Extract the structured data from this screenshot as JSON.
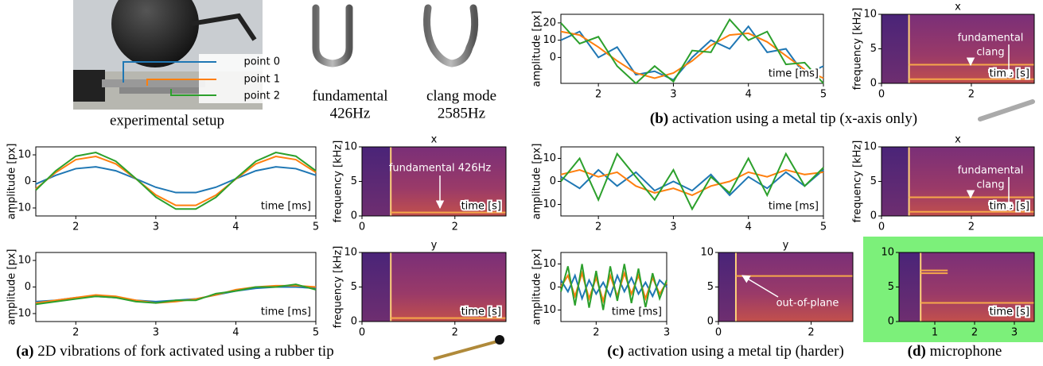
{
  "setup": {
    "caption": "experimental setup",
    "points": [
      "point 0",
      "point 1",
      "point 2"
    ]
  },
  "forks": [
    {
      "name": "fundamental",
      "freq": "426Hz"
    },
    {
      "name": "clang mode",
      "freq": "2585Hz"
    }
  ],
  "captions": [
    {
      "label": "(a)",
      "text": "2D vibrations of fork activated using a rubber tip"
    },
    {
      "label": "(b)",
      "text": "activation using a metal tip (x-axis only)"
    },
    {
      "label": "(c)",
      "text": "activation using a metal tip (harder)"
    },
    {
      "label": "(d)",
      "text": "microphone"
    }
  ],
  "chart_data": [
    {
      "type": "line",
      "xlabel": "time [ms]",
      "ylabel": "amplitude [px]",
      "xlim": [
        1.5,
        5
      ],
      "ylim": [
        -15,
        25
      ],
      "xticks": [
        2,
        3,
        4,
        5
      ],
      "yticks": [
        0,
        10,
        20
      ],
      "x": [
        1.5,
        1.75,
        2,
        2.25,
        2.5,
        2.75,
        3,
        3.25,
        3.5,
        3.75,
        4,
        4.25,
        4.5,
        4.75,
        5
      ],
      "series": [
        {
          "color": "#1f77b4",
          "values": [
            10,
            15,
            0,
            6,
            -10,
            -8,
            -13,
            0,
            10,
            5,
            18,
            3,
            5,
            -10,
            -5
          ]
        },
        {
          "color": "#ff7f0e",
          "values": [
            15,
            13,
            6,
            -2,
            -9,
            -12,
            -9,
            -2,
            7,
            13,
            14,
            9,
            1,
            -7,
            -12
          ]
        },
        {
          "color": "#2ca02c",
          "values": [
            20,
            8,
            12,
            -5,
            -15,
            -5,
            -14,
            4,
            3,
            22,
            10,
            15,
            -4,
            -3,
            -15
          ]
        }
      ]
    },
    {
      "type": "spectrogram",
      "title": "x",
      "xlabel": "time [s]",
      "ylabel": "frequency [kHz]",
      "xlim": [
        0,
        3.4
      ],
      "ylim": [
        0,
        10
      ],
      "xticks": [
        0,
        2
      ],
      "yticks": [
        0,
        5,
        10
      ],
      "annotations": [
        "fundamental",
        "clang"
      ]
    },
    {
      "type": "line",
      "xlabel": "time [ms]",
      "ylabel": "amplitude [px]",
      "xlim": [
        1.5,
        5
      ],
      "ylim": [
        -13,
        13
      ],
      "xticks": [
        2,
        3,
        4,
        5
      ],
      "yticks": [
        -10,
        0,
        10
      ],
      "x": [
        1.5,
        1.75,
        2,
        2.25,
        2.5,
        2.75,
        3,
        3.25,
        3.5,
        3.75,
        4,
        4.25,
        4.5,
        4.75,
        5
      ],
      "series": [
        {
          "color": "#1f77b4",
          "values": [
            -1.0,
            2.3,
            4.8,
            5.5,
            4.0,
            1.0,
            -2.2,
            -4.2,
            -4.2,
            -2.2,
            1.0,
            4.0,
            5.5,
            4.8,
            2.3
          ]
        },
        {
          "color": "#ff7f0e",
          "values": [
            -2.8,
            3.4,
            8.2,
            9.4,
            6.6,
            1.0,
            -5.1,
            -9.0,
            -9.0,
            -5.2,
            0.9,
            6.6,
            9.4,
            8.2,
            3.4
          ]
        },
        {
          "color": "#2ca02c",
          "values": [
            -3.3,
            4.0,
            9.5,
            10.9,
            7.6,
            1.1,
            -5.9,
            -10.4,
            -10.4,
            -6.0,
            1.1,
            7.6,
            10.9,
            9.5,
            4.0
          ]
        }
      ]
    },
    {
      "type": "spectrogram",
      "title": "x",
      "xlabel": "time [s]",
      "ylabel": "frequency [kHz]",
      "xlim": [
        0,
        3.1
      ],
      "ylim": [
        0,
        10
      ],
      "xticks": [
        0,
        2
      ],
      "yticks": [
        0,
        5,
        10
      ],
      "annotations": [
        "fundamental 426Hz"
      ]
    },
    {
      "type": "line",
      "xlabel": "time [ms]",
      "ylabel": "amplitude [px]",
      "xlim": [
        1.5,
        5
      ],
      "ylim": [
        -13,
        13
      ],
      "xticks": [
        2,
        3,
        4,
        5
      ],
      "yticks": [
        -10,
        0,
        10
      ],
      "x": [
        1.5,
        1.75,
        2,
        2.25,
        2.5,
        2.75,
        3,
        3.25,
        3.5,
        3.75,
        4,
        4.25,
        4.5,
        4.75,
        5
      ],
      "series": [
        {
          "color": "#1f77b4",
          "values": [
            -5.5,
            -5,
            -4,
            -3.5,
            -4,
            -5,
            -5.5,
            -5,
            -4.5,
            -3,
            -1.5,
            -0.5,
            0,
            0,
            -0.5
          ]
        },
        {
          "color": "#ff7f0e",
          "values": [
            -6,
            -5,
            -4,
            -3,
            -3.5,
            -5,
            -6,
            -5.5,
            -4.5,
            -3,
            -1,
            0,
            0.5,
            0.5,
            0
          ]
        },
        {
          "color": "#2ca02c",
          "values": [
            -6.5,
            -5.5,
            -4.5,
            -3.5,
            -4,
            -5.5,
            -6,
            -5,
            -5,
            -2.5,
            -1.5,
            0,
            0,
            1,
            -1
          ]
        }
      ]
    },
    {
      "type": "spectrogram",
      "title": "y",
      "xlabel": "time [s]",
      "ylabel": "frequency [kHz]",
      "xlim": [
        0,
        3.1
      ],
      "ylim": [
        0,
        10
      ],
      "xticks": [
        0,
        2
      ],
      "yticks": [
        0,
        5,
        10
      ],
      "annotations": []
    },
    {
      "type": "line",
      "xlabel": "time [ms]",
      "ylabel": "amplitude [px]",
      "xlim": [
        1.5,
        5
      ],
      "ylim": [
        -15,
        15
      ],
      "xticks": [
        2,
        3,
        4,
        5
      ],
      "yticks": [
        -10,
        0,
        10
      ],
      "x": [
        1.5,
        1.75,
        2,
        2.25,
        2.5,
        2.75,
        3,
        3.25,
        3.5,
        3.75,
        4,
        4.25,
        4.5,
        4.75,
        5
      ],
      "series": [
        {
          "color": "#1f77b4",
          "values": [
            2,
            -3,
            5,
            -2,
            4,
            -4,
            0,
            -4,
            3,
            -6,
            2,
            -3,
            4,
            -2,
            5
          ]
        },
        {
          "color": "#ff7f0e",
          "values": [
            3,
            5,
            2,
            4,
            -2,
            -5,
            -3,
            -6,
            -2,
            0,
            4,
            2,
            5,
            3,
            4
          ]
        },
        {
          "color": "#2ca02c",
          "values": [
            0,
            10,
            -8,
            12,
            2,
            -8,
            5,
            -12,
            2,
            -5,
            10,
            -6,
            12,
            -2,
            6
          ]
        }
      ]
    },
    {
      "type": "spectrogram",
      "title": "x",
      "xlabel": "time [s]",
      "ylabel": "frequency [kHz]",
      "xlim": [
        0,
        3.4
      ],
      "ylim": [
        0,
        10
      ],
      "xticks": [
        0,
        2
      ],
      "yticks": [
        0,
        5,
        10
      ],
      "annotations": [
        "fundamental",
        "clang"
      ]
    },
    {
      "type": "line",
      "xlabel": "time [ms]",
      "ylabel": "amplitude [px]",
      "xlim": [
        1.5,
        3
      ],
      "ylim": [
        -15,
        15
      ],
      "xticks": [
        2,
        3
      ],
      "yticks": [
        -10,
        0,
        10
      ],
      "x": [
        1.5,
        1.6,
        1.7,
        1.8,
        1.9,
        2,
        2.1,
        2.2,
        2.3,
        2.4,
        2.5,
        2.6,
        2.7,
        2.8,
        2.9,
        3
      ],
      "series": [
        {
          "color": "#1f77b4",
          "values": [
            3,
            -2,
            5,
            -5,
            3,
            -3,
            2,
            -4,
            5,
            -2,
            4,
            -3,
            2,
            -4,
            3,
            0
          ]
        },
        {
          "color": "#ff7f0e",
          "values": [
            0,
            5,
            -4,
            6,
            -5,
            4,
            -6,
            5,
            -4,
            6,
            -3,
            5,
            -5,
            4,
            -3,
            2
          ]
        },
        {
          "color": "#2ca02c",
          "values": [
            -2,
            9,
            -8,
            10,
            -9,
            7,
            -10,
            9,
            -6,
            10,
            -7,
            8,
            -9,
            6,
            -5,
            3
          ]
        }
      ]
    },
    {
      "type": "spectrogram",
      "title": "y",
      "xlabel": null,
      "ylabel": null,
      "xlim": [
        0,
        2.9
      ],
      "ylim": [
        0,
        10
      ],
      "xticks": [
        0,
        2
      ],
      "yticks": [
        0,
        5,
        10
      ],
      "annotations": [
        "out-of-plane"
      ]
    },
    {
      "type": "spectrogram",
      "title": null,
      "xlabel": "time [s]",
      "ylabel": null,
      "xlim": [
        0.1,
        3.5
      ],
      "ylim": [
        0,
        10
      ],
      "xticks": [
        1,
        2,
        3
      ],
      "yticks": [
        0,
        5,
        10
      ],
      "annotations": []
    }
  ]
}
